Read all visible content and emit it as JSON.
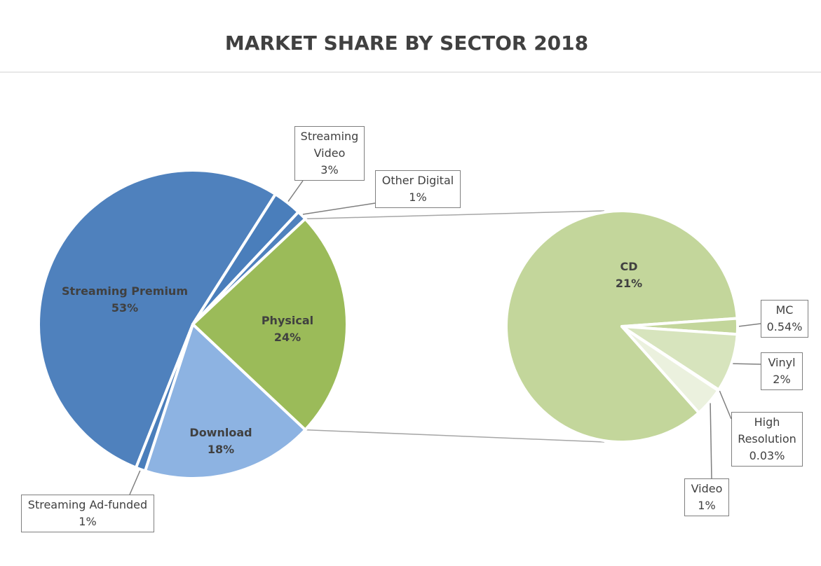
{
  "chart_data": [
    {
      "type": "pie",
      "title": "MARKET SHARE BY SECTOR 2018",
      "categories": [
        "Streaming Premium",
        "Streaming Video",
        "Other Digital",
        "Physical",
        "Download",
        "Streaming Ad-funded"
      ],
      "values": [
        53,
        3,
        1,
        24,
        18,
        1
      ],
      "value_labels": [
        "53%",
        "3%",
        "1%",
        "24%",
        "18%",
        "1%"
      ],
      "colors": [
        "#4f81bd",
        "#4a7ebb",
        "#4f81bd",
        "#9bbb59",
        "#8db3e2",
        "#4a7ebb"
      ]
    },
    {
      "type": "pie",
      "categories": [
        "CD",
        "MC",
        "Vinyl",
        "High Resolution",
        "Video"
      ],
      "values": [
        21,
        0.54,
        2,
        0.03,
        1
      ],
      "value_labels": [
        "21%",
        "0.54%",
        "2%",
        "0.03%",
        "1%"
      ],
      "colors": [
        "#c3d69b",
        "#c3d69b",
        "#d7e4bd",
        "#ebf1de",
        "#ebf1de"
      ]
    }
  ]
}
